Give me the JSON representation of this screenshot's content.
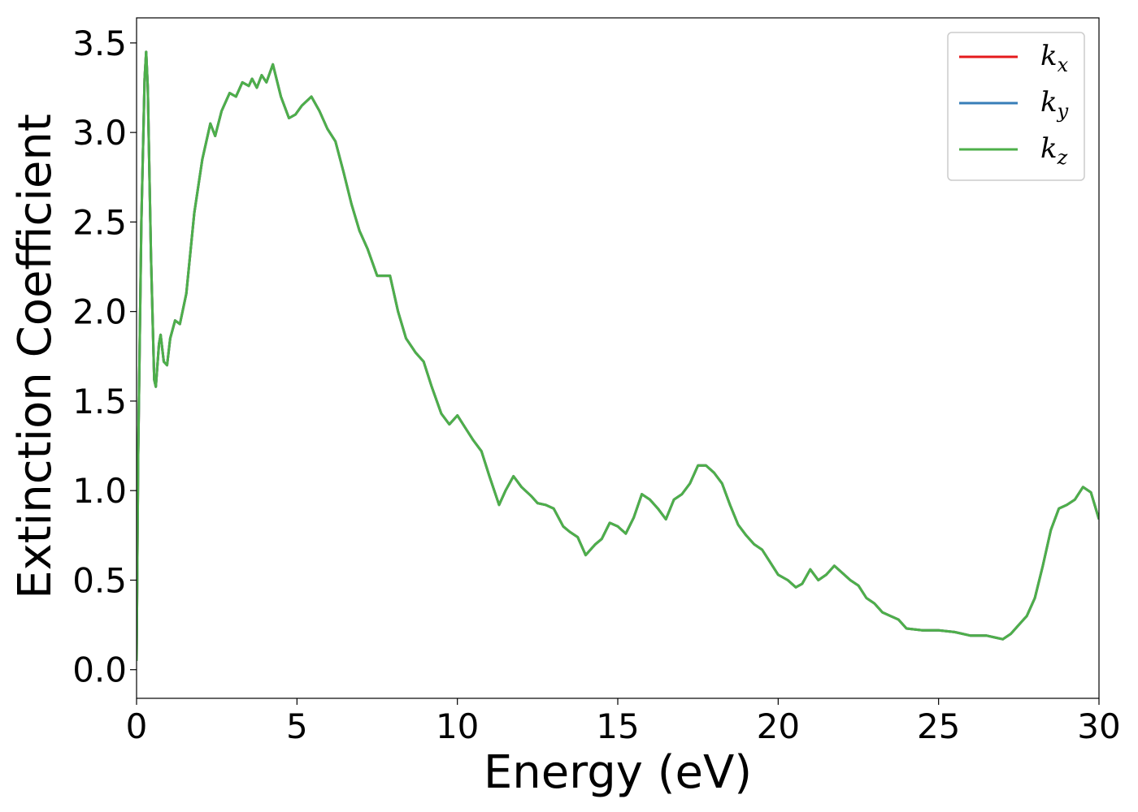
{
  "chart_data": {
    "type": "line",
    "title": "",
    "xlabel": "Energy (eV)",
    "ylabel": "Extinction Coefficient",
    "xlim": [
      0,
      30
    ],
    "ylim": [
      -0.16,
      3.64
    ],
    "xticks": [
      0,
      5,
      10,
      15,
      20,
      25,
      30
    ],
    "xtick_labels": [
      "0",
      "5",
      "10",
      "15",
      "20",
      "25",
      "30"
    ],
    "yticks": [
      0.0,
      0.5,
      1.0,
      1.5,
      2.0,
      2.5,
      3.0,
      3.5
    ],
    "ytick_labels": [
      "0.0",
      "0.5",
      "1.0",
      "1.5",
      "2.0",
      "2.5",
      "3.0",
      "3.5"
    ],
    "grid": false,
    "legend_position": "top-right",
    "x": [
      0.0,
      0.05,
      0.15,
      0.25,
      0.3,
      0.35,
      0.45,
      0.55,
      0.6,
      0.7,
      0.75,
      0.85,
      0.95,
      1.05,
      1.2,
      1.35,
      1.55,
      1.8,
      2.05,
      2.3,
      2.45,
      2.65,
      2.9,
      3.1,
      3.3,
      3.5,
      3.6,
      3.75,
      3.9,
      4.05,
      4.25,
      4.5,
      4.75,
      4.95,
      5.15,
      5.45,
      5.7,
      5.95,
      6.2,
      6.45,
      6.7,
      6.95,
      7.2,
      7.5,
      7.7,
      7.9,
      8.15,
      8.4,
      8.7,
      8.95,
      9.2,
      9.5,
      9.75,
      10.0,
      10.25,
      10.5,
      10.75,
      11.0,
      11.3,
      11.5,
      11.75,
      12.0,
      12.3,
      12.5,
      12.75,
      13.0,
      13.3,
      13.5,
      13.75,
      14.0,
      14.3,
      14.5,
      14.75,
      15.0,
      15.25,
      15.5,
      15.75,
      16.0,
      16.25,
      16.5,
      16.75,
      17.0,
      17.25,
      17.5,
      17.75,
      18.0,
      18.25,
      18.5,
      18.75,
      19.0,
      19.25,
      19.5,
      19.75,
      20.0,
      20.3,
      20.55,
      20.75,
      21.0,
      21.25,
      21.5,
      21.75,
      22.0,
      22.25,
      22.5,
      22.75,
      23.0,
      23.25,
      23.5,
      23.75,
      24.0,
      24.5,
      25.0,
      25.5,
      26.0,
      26.5,
      26.75,
      27.0,
      27.25,
      27.5,
      27.75,
      28.0,
      28.25,
      28.5,
      28.75,
      29.0,
      29.25,
      29.5,
      29.75,
      30.0
    ],
    "series": [
      {
        "name": "k_x",
        "symbol": "k",
        "subscript": "x",
        "color": "#e41a1c",
        "values": [
          0.05,
          1.2,
          2.5,
          3.3,
          3.45,
          3.25,
          2.3,
          1.62,
          1.58,
          1.82,
          1.87,
          1.72,
          1.7,
          1.85,
          1.95,
          1.93,
          2.1,
          2.55,
          2.85,
          3.05,
          2.98,
          3.12,
          3.22,
          3.2,
          3.28,
          3.26,
          3.3,
          3.25,
          3.32,
          3.28,
          3.38,
          3.2,
          3.08,
          3.1,
          3.15,
          3.2,
          3.12,
          3.02,
          2.95,
          2.78,
          2.6,
          2.45,
          2.35,
          2.2,
          2.2,
          2.2,
          2.0,
          1.85,
          1.77,
          1.72,
          1.58,
          1.43,
          1.37,
          1.42,
          1.35,
          1.28,
          1.22,
          1.08,
          0.92,
          1.0,
          1.08,
          1.02,
          0.97,
          0.93,
          0.92,
          0.9,
          0.8,
          0.77,
          0.74,
          0.64,
          0.7,
          0.73,
          0.82,
          0.8,
          0.76,
          0.85,
          0.98,
          0.95,
          0.9,
          0.84,
          0.95,
          0.98,
          1.04,
          1.14,
          1.14,
          1.1,
          1.04,
          0.92,
          0.81,
          0.75,
          0.7,
          0.67,
          0.6,
          0.53,
          0.5,
          0.46,
          0.48,
          0.56,
          0.5,
          0.53,
          0.58,
          0.54,
          0.5,
          0.47,
          0.4,
          0.37,
          0.32,
          0.3,
          0.28,
          0.23,
          0.22,
          0.22,
          0.21,
          0.19,
          0.19,
          0.18,
          0.17,
          0.2,
          0.25,
          0.3,
          0.4,
          0.58,
          0.78,
          0.9,
          0.92,
          0.95,
          1.02,
          0.99,
          0.84
        ]
      },
      {
        "name": "k_y",
        "symbol": "k",
        "subscript": "y",
        "color": "#377eb8",
        "values": [
          0.05,
          1.2,
          2.5,
          3.3,
          3.45,
          3.25,
          2.3,
          1.62,
          1.58,
          1.82,
          1.87,
          1.72,
          1.7,
          1.85,
          1.95,
          1.93,
          2.1,
          2.55,
          2.85,
          3.05,
          2.98,
          3.12,
          3.22,
          3.2,
          3.28,
          3.26,
          3.3,
          3.25,
          3.32,
          3.28,
          3.38,
          3.2,
          3.08,
          3.1,
          3.15,
          3.2,
          3.12,
          3.02,
          2.95,
          2.78,
          2.6,
          2.45,
          2.35,
          2.2,
          2.2,
          2.2,
          2.0,
          1.85,
          1.77,
          1.72,
          1.58,
          1.43,
          1.37,
          1.42,
          1.35,
          1.28,
          1.22,
          1.08,
          0.92,
          1.0,
          1.08,
          1.02,
          0.97,
          0.93,
          0.92,
          0.9,
          0.8,
          0.77,
          0.74,
          0.64,
          0.7,
          0.73,
          0.82,
          0.8,
          0.76,
          0.85,
          0.98,
          0.95,
          0.9,
          0.84,
          0.95,
          0.98,
          1.04,
          1.14,
          1.14,
          1.1,
          1.04,
          0.92,
          0.81,
          0.75,
          0.7,
          0.67,
          0.6,
          0.53,
          0.5,
          0.46,
          0.48,
          0.56,
          0.5,
          0.53,
          0.58,
          0.54,
          0.5,
          0.47,
          0.4,
          0.37,
          0.32,
          0.3,
          0.28,
          0.23,
          0.22,
          0.22,
          0.21,
          0.19,
          0.19,
          0.18,
          0.17,
          0.2,
          0.25,
          0.3,
          0.4,
          0.58,
          0.78,
          0.9,
          0.92,
          0.95,
          1.02,
          0.99,
          0.84
        ]
      },
      {
        "name": "k_z",
        "symbol": "k",
        "subscript": "z",
        "color": "#4daf4a",
        "values": [
          0.05,
          1.2,
          2.5,
          3.3,
          3.45,
          3.25,
          2.3,
          1.62,
          1.58,
          1.82,
          1.87,
          1.72,
          1.7,
          1.85,
          1.95,
          1.93,
          2.1,
          2.55,
          2.85,
          3.05,
          2.98,
          3.12,
          3.22,
          3.2,
          3.28,
          3.26,
          3.3,
          3.25,
          3.32,
          3.28,
          3.38,
          3.2,
          3.08,
          3.1,
          3.15,
          3.2,
          3.12,
          3.02,
          2.95,
          2.78,
          2.6,
          2.45,
          2.35,
          2.2,
          2.2,
          2.2,
          2.0,
          1.85,
          1.77,
          1.72,
          1.58,
          1.43,
          1.37,
          1.42,
          1.35,
          1.28,
          1.22,
          1.08,
          0.92,
          1.0,
          1.08,
          1.02,
          0.97,
          0.93,
          0.92,
          0.9,
          0.8,
          0.77,
          0.74,
          0.64,
          0.7,
          0.73,
          0.82,
          0.8,
          0.76,
          0.85,
          0.98,
          0.95,
          0.9,
          0.84,
          0.95,
          0.98,
          1.04,
          1.14,
          1.14,
          1.1,
          1.04,
          0.92,
          0.81,
          0.75,
          0.7,
          0.67,
          0.6,
          0.53,
          0.5,
          0.46,
          0.48,
          0.56,
          0.5,
          0.53,
          0.58,
          0.54,
          0.5,
          0.47,
          0.4,
          0.37,
          0.32,
          0.3,
          0.28,
          0.23,
          0.22,
          0.22,
          0.21,
          0.19,
          0.19,
          0.18,
          0.17,
          0.2,
          0.25,
          0.3,
          0.4,
          0.58,
          0.78,
          0.9,
          0.92,
          0.95,
          1.02,
          0.99,
          0.84
        ]
      }
    ]
  }
}
